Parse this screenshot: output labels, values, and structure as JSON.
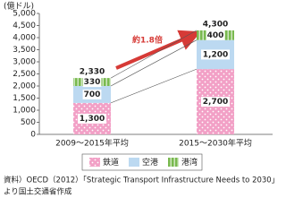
{
  "chart_data": {
    "type": "stacked_bar",
    "y_unit": "(億ドル)",
    "categories": [
      "2009～2015年平均",
      "2015～2030年平均"
    ],
    "series": [
      {
        "name": "鉄道",
        "color": "#f2a0c6",
        "values": [
          1300,
          2700
        ],
        "value_labels": [
          "1,300",
          "2,700"
        ]
      },
      {
        "name": "空港",
        "color": "#bcd9f1",
        "values": [
          700,
          1200
        ],
        "value_labels": [
          "700",
          "1,200"
        ]
      },
      {
        "name": "港湾",
        "color": "#79b94f",
        "values": [
          330,
          400
        ],
        "value_labels": [
          "330",
          "400"
        ]
      }
    ],
    "totals": [
      2330,
      4300
    ],
    "total_labels": [
      "2,330",
      "4,300"
    ],
    "annotation": "約1.8倍",
    "ylim": [
      0,
      5000
    ],
    "yticks": [
      0,
      500,
      {
        "value": 1000,
        "label": "1,000"
      },
      {
        "value": 1500,
        "label": "1,500"
      },
      {
        "value": 2000,
        "label": "2,000"
      },
      {
        "value": 2500,
        "label": "2,500"
      },
      {
        "value": 3000,
        "label": "3,000"
      },
      {
        "value": 3500,
        "label": "3,500"
      },
      {
        "value": 4000,
        "label": "4,000"
      },
      {
        "value": 4500,
        "label": "4,500"
      },
      {
        "value": 5000,
        "label": "5,000"
      }
    ],
    "source": [
      "資料）OECD（2012）「Strategic Transport Infrastructure Needs to 2030」",
      "より国土交通省作成"
    ]
  }
}
